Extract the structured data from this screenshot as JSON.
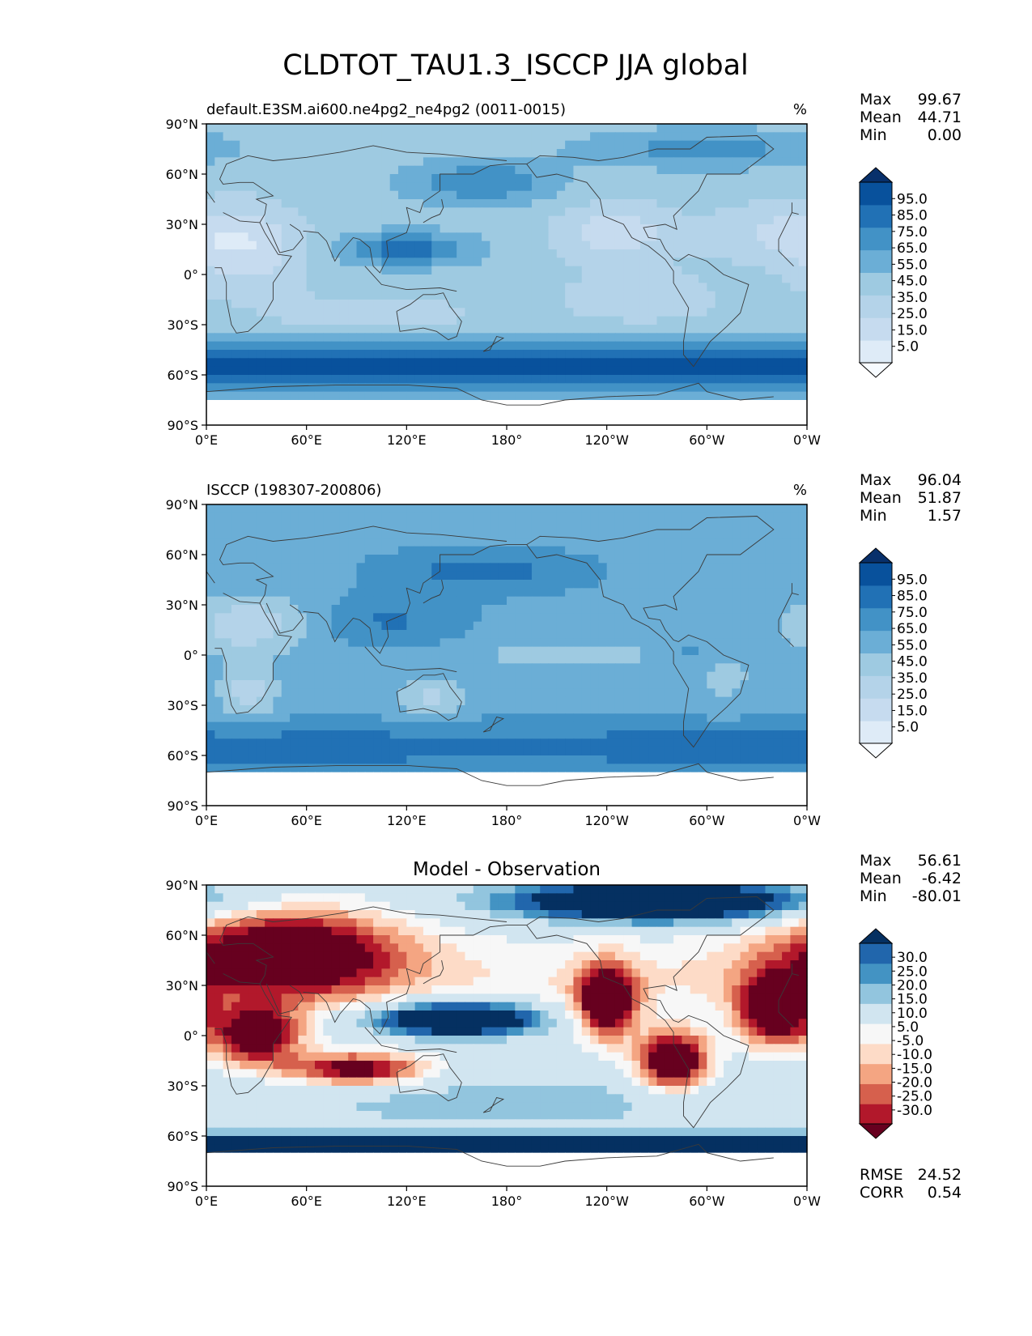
{
  "figure_title": "CLDTOT_TAU1.3_ISCCP JJA global",
  "colors": {
    "blues": [
      "#f7fbff",
      "#deebf7",
      "#c6dbef",
      "#b4d3e9",
      "#9ecae1",
      "#6baed6",
      "#4292c6",
      "#2171b5",
      "#08519c",
      "#08306b"
    ],
    "diverging": [
      "#67001f",
      "#b2182b",
      "#d6604d",
      "#f4a582",
      "#fddbc7",
      "#f7f7f7",
      "#d1e5f0",
      "#92c5de",
      "#4393c3",
      "#2166ac",
      "#053061"
    ],
    "coast": "#3a3a3a",
    "no_data": "#ffffff"
  },
  "x_ticks": [
    "0°E",
    "60°E",
    "120°E",
    "180°",
    "120°W",
    "60°W",
    "0°W"
  ],
  "y_ticks": [
    "90°N",
    "60°N",
    "30°N",
    "0°",
    "30°S",
    "60°S",
    "90°S"
  ],
  "chart_data": [
    {
      "type": "heatmap",
      "title": "default.E3SM.ai600.ne4pg2_ne4pg2 (0011-0015)",
      "units": "%",
      "stats": [
        {
          "label": "Max",
          "value": "99.67"
        },
        {
          "label": "Mean",
          "value": "44.71"
        },
        {
          "label": "Min",
          "value": "0.00"
        }
      ],
      "colorbar": {
        "palette": "blues",
        "levels": [
          "95.0",
          "85.0",
          "75.0",
          "65.0",
          "55.0",
          "45.0",
          "35.0",
          "25.0",
          "15.0",
          "5.0"
        ],
        "range": [
          0,
          100
        ]
      },
      "field": "model",
      "extra_stats": []
    },
    {
      "type": "heatmap",
      "title": "ISCCP (198307-200806)",
      "units": "%",
      "stats": [
        {
          "label": "Max",
          "value": "96.04"
        },
        {
          "label": "Mean",
          "value": "51.87"
        },
        {
          "label": "Min",
          "value": "1.57"
        }
      ],
      "colorbar": {
        "palette": "blues",
        "levels": [
          "95.0",
          "85.0",
          "75.0",
          "65.0",
          "55.0",
          "45.0",
          "35.0",
          "25.0",
          "15.0",
          "5.0"
        ],
        "range": [
          0,
          100
        ]
      },
      "field": "obs",
      "extra_stats": []
    },
    {
      "type": "heatmap",
      "title": "Model - Observation",
      "units": "",
      "stats": [
        {
          "label": "Max",
          "value": "56.61"
        },
        {
          "label": "Mean",
          "value": "-6.42"
        },
        {
          "label": "Min",
          "value": "-80.01"
        }
      ],
      "colorbar": {
        "palette": "diverging",
        "levels": [
          "30.0",
          "25.0",
          "20.0",
          "15.0",
          "10.0",
          "5.0",
          "-5.0",
          "-10.0",
          "-15.0",
          "-20.0",
          "-25.0",
          "-30.0"
        ],
        "range": [
          -35,
          35
        ]
      },
      "field": "diff",
      "extra_stats": [
        {
          "label": "RMSE",
          "value": "24.52"
        },
        {
          "label": "CORR",
          "value": "0.54"
        }
      ]
    }
  ]
}
